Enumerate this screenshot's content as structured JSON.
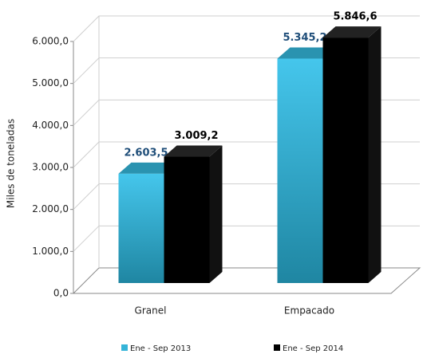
{
  "chart_data": {
    "type": "bar3d",
    "y_label": "Miles de toneladas",
    "categories": [
      "Granel",
      "Empacado"
    ],
    "series": [
      {
        "name": "Ene - Sep 2013",
        "color": "#35b4d8",
        "label_color": "#1f4e79",
        "values": [
          2603.5,
          5345.2
        ],
        "value_labels": [
          "2.603,5",
          "5.345,2"
        ]
      },
      {
        "name": "Ene - Sep 2014",
        "color": "#000000",
        "label_color": "#000000",
        "values": [
          3009.2,
          5846.6
        ],
        "value_labels": [
          "3.009,2",
          "5.846,6"
        ]
      }
    ],
    "ylim": [
      0,
      6000
    ],
    "yticks": [
      {
        "value": 0,
        "label": "0,0"
      },
      {
        "value": 1000,
        "label": "1.000,0"
      },
      {
        "value": 2000,
        "label": "2.000,0"
      },
      {
        "value": 3000,
        "label": "3.000,0"
      },
      {
        "value": 4000,
        "label": "4.000,0"
      },
      {
        "value": 5000,
        "label": "5.000,0"
      },
      {
        "value": 6000,
        "label": "6.000,0"
      }
    ],
    "grid": true
  }
}
